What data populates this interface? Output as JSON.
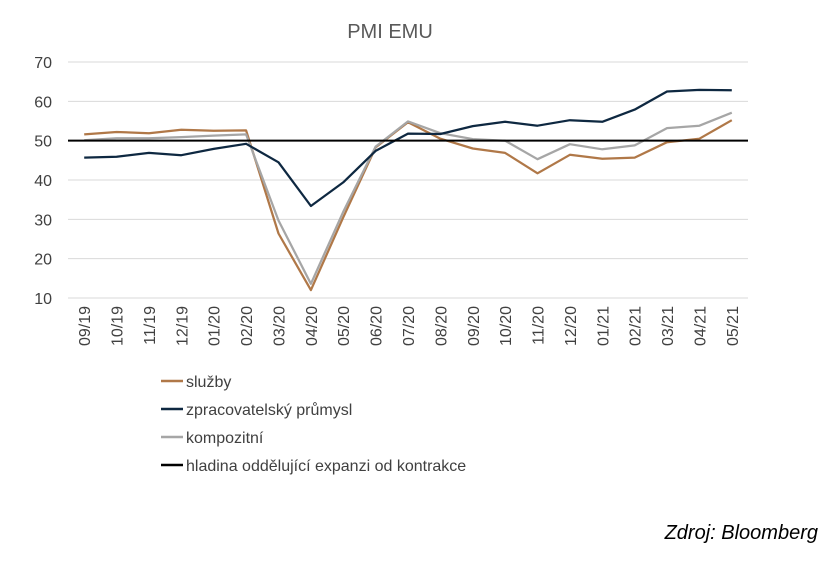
{
  "chart_data": {
    "type": "line",
    "title": "PMI EMU",
    "categories": [
      "09/19",
      "10/19",
      "11/19",
      "12/19",
      "01/20",
      "02/20",
      "03/20",
      "04/20",
      "05/20",
      "06/20",
      "07/20",
      "08/20",
      "09/20",
      "10/20",
      "11/20",
      "12/20",
      "01/21",
      "02/21",
      "03/21",
      "04/21",
      "05/21"
    ],
    "ylim": [
      10,
      70
    ],
    "yticks": [
      "10",
      "20",
      "30",
      "40",
      "50",
      "60",
      "70"
    ],
    "grid": true,
    "legend_position": "bottom",
    "series": [
      {
        "name": "služby",
        "color": "#b07848",
        "values": [
          51.6,
          52.2,
          51.9,
          52.8,
          52.5,
          52.6,
          26.4,
          12.0,
          30.5,
          48.3,
          54.7,
          50.5,
          48.0,
          46.9,
          41.7,
          46.4,
          45.4,
          45.7,
          49.6,
          50.5,
          55.2
        ]
      },
      {
        "name": "zpracovatelský průmysl",
        "color": "#0e2841",
        "values": [
          45.7,
          45.9,
          46.9,
          46.3,
          47.9,
          49.2,
          44.5,
          33.4,
          39.4,
          47.4,
          51.8,
          51.7,
          53.7,
          54.8,
          53.8,
          55.2,
          54.8,
          57.9,
          62.5,
          62.9,
          62.8
        ]
      },
      {
        "name": "kompozitní",
        "color": "#a6a6a6",
        "values": [
          50.1,
          50.6,
          50.6,
          50.9,
          51.3,
          51.6,
          29.7,
          13.6,
          31.9,
          48.5,
          54.9,
          51.9,
          50.4,
          50.0,
          45.3,
          49.1,
          47.8,
          48.8,
          53.2,
          53.8,
          57.1
        ]
      },
      {
        "name": "hladina oddělující expanzi od kontrakce",
        "color": "#000000",
        "values": [
          50,
          50,
          50,
          50,
          50,
          50,
          50,
          50,
          50,
          50,
          50,
          50,
          50,
          50,
          50,
          50,
          50,
          50,
          50,
          50,
          50
        ]
      }
    ]
  },
  "source_label": "Zdroj: Bloomberg"
}
